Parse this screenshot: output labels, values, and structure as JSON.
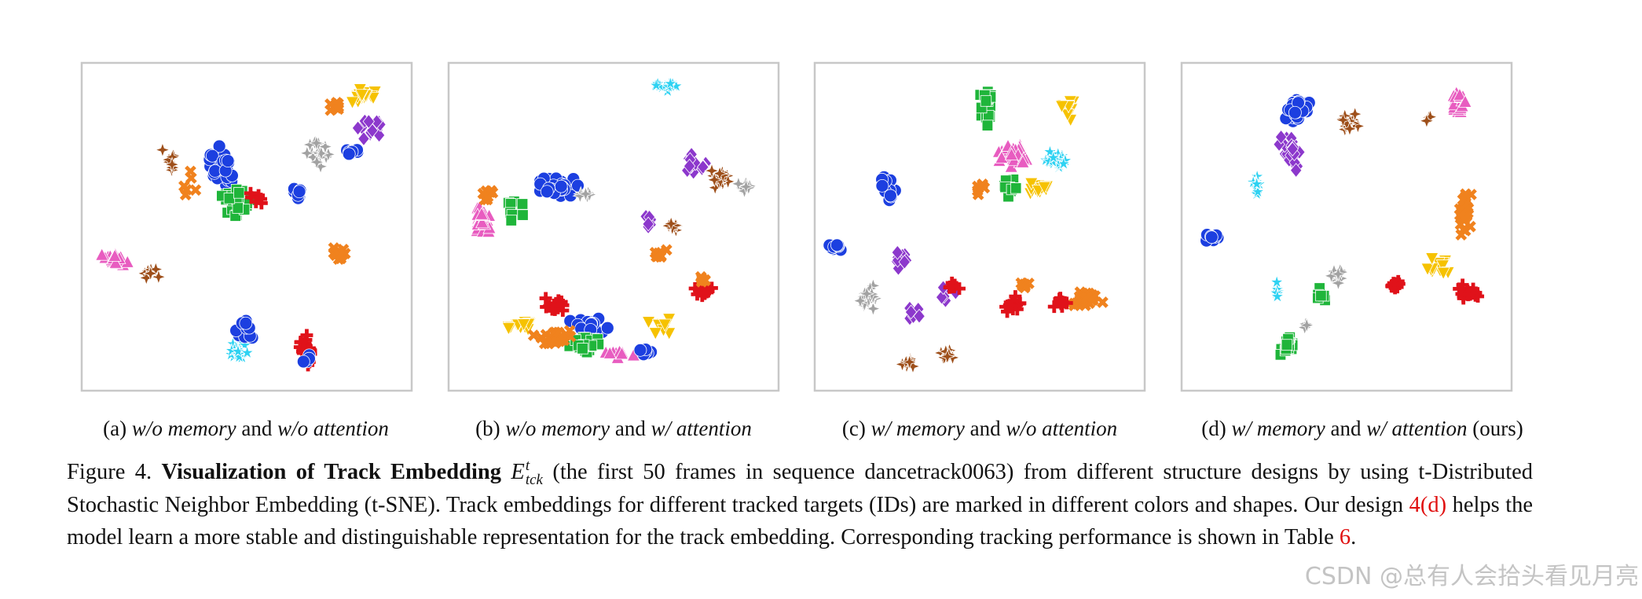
{
  "figure": {
    "subfigures": [
      {
        "label": "(a)",
        "first": "w/o memory",
        "joiner": "and",
        "second": "w/o attention"
      },
      {
        "label": "(b)",
        "first": "w/o memory",
        "joiner": "and",
        "second": "w/ attention"
      },
      {
        "label": "(c)",
        "first": "w/ memory",
        "joiner": "and",
        "second": "w/o attention"
      },
      {
        "label": "(d)",
        "first": "w/ memory",
        "joiner": "and",
        "second": "w/ attention",
        "suffix": "(ours)"
      }
    ],
    "caption": {
      "label": "Figure 4.",
      "title": "Visualization of Track Embedding",
      "symbol": {
        "base": "E",
        "sup": "t",
        "sub": "tck"
      },
      "text1": "(the first 50 frames in sequence dancetrack0063) from different structure designs by using t-Distributed Stochastic Neighbor Embedding (t-SNE). Track embeddings for different tracked targets (IDs) are marked in different colors and shapes.  Our design",
      "ref1": "4(d)",
      "text2": "helps the model learn a more stable and distinguishable representation for the track embedding. Corresponding tracking performance is shown in Table",
      "ref2": "6",
      "text3": "."
    }
  },
  "watermark": "CSDN @总有人会拾头看见月亮"
}
